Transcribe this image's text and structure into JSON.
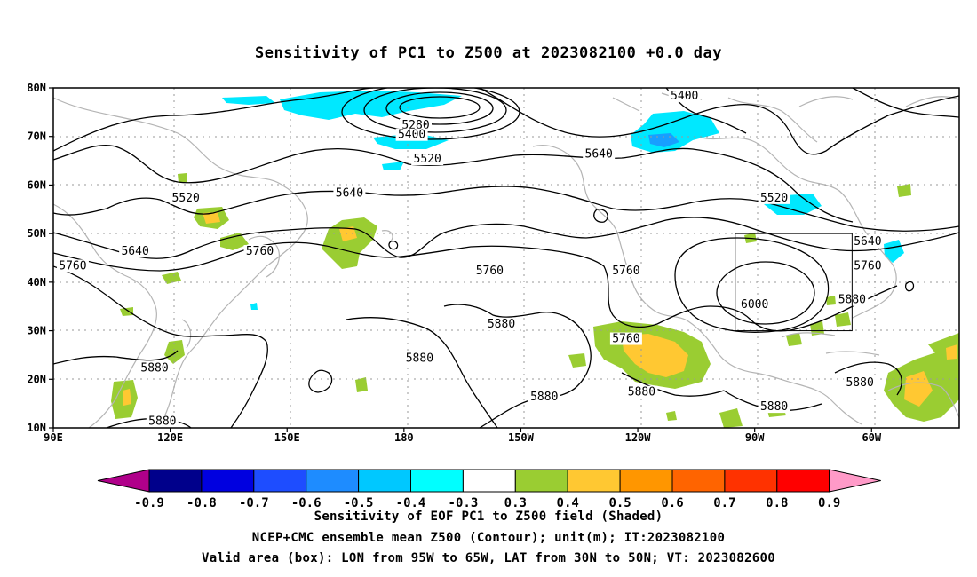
{
  "title": "Sensitivity of PC1 to Z500 at 2023082100 +0.0 day",
  "axes": {
    "lat_labels": [
      "80N",
      "70N",
      "60N",
      "50N",
      "40N",
      "30N",
      "20N",
      "10N"
    ],
    "lon_labels": [
      "90E",
      "120E",
      "150E",
      "180",
      "150W",
      "120W",
      "90W",
      "60W"
    ]
  },
  "contour_labels": [
    {
      "text": "5400",
      "lon": -108,
      "lat": 78
    },
    {
      "text": "5280",
      "lon": -177,
      "lat": 72
    },
    {
      "text": "5400",
      "lon": -178,
      "lat": 70
    },
    {
      "text": "5520",
      "lon": -174,
      "lat": 65
    },
    {
      "text": "5640",
      "lon": -130,
      "lat": 66
    },
    {
      "text": "5520",
      "lon": 124,
      "lat": 57
    },
    {
      "text": "5640",
      "lon": 166,
      "lat": 58
    },
    {
      "text": "5520",
      "lon": -85,
      "lat": 57
    },
    {
      "text": "5640",
      "lon": 111,
      "lat": 46
    },
    {
      "text": "5760",
      "lon": 95,
      "lat": 43
    },
    {
      "text": "5760",
      "lon": 143,
      "lat": 46
    },
    {
      "text": "5760",
      "lon": -158,
      "lat": 42
    },
    {
      "text": "5760",
      "lon": -123,
      "lat": 42
    },
    {
      "text": "5640",
      "lon": -61,
      "lat": 48
    },
    {
      "text": "5760",
      "lon": -61,
      "lat": 43
    },
    {
      "text": "5880",
      "lon": -65,
      "lat": 36
    },
    {
      "text": "6000",
      "lon": -90,
      "lat": 35
    },
    {
      "text": "5880",
      "lon": -155,
      "lat": 31
    },
    {
      "text": "5760",
      "lon": -123,
      "lat": 28
    },
    {
      "text": "5880",
      "lon": -176,
      "lat": 24
    },
    {
      "text": "5880",
      "lon": 116,
      "lat": 22
    },
    {
      "text": "5880",
      "lon": -144,
      "lat": 16
    },
    {
      "text": "5880",
      "lon": -119,
      "lat": 17
    },
    {
      "text": "5880",
      "lon": -85,
      "lat": 14
    },
    {
      "text": "5880",
      "lon": -63,
      "lat": 19
    },
    {
      "text": "5880",
      "lon": 118,
      "lat": 11
    }
  ],
  "valid_box": {
    "lon_from": -95,
    "lon_to": -65,
    "lat_from": 30,
    "lat_to": 50
  },
  "colorbar": {
    "labels": [
      "-0.9",
      "-0.8",
      "-0.7",
      "-0.6",
      "-0.5",
      "-0.4",
      "-0.3",
      "0.3",
      "0.4",
      "0.5",
      "0.6",
      "0.7",
      "0.8",
      "0.9"
    ],
    "colors": [
      "#b0008a",
      "#00008b",
      "#0000e0",
      "#1e4dff",
      "#1e8cff",
      "#00c8ff",
      "#00ffff",
      "#ffffff",
      "#9acd32",
      "#ffc832",
      "#ff9600",
      "#ff6400",
      "#ff3200",
      "#ff0000",
      "#ff9ac8"
    ]
  },
  "shaded_areas": {
    "negative_color": "#00e8ff",
    "positive_outer_color": "#9acd32",
    "positive_inner_color": "#ffc832"
  },
  "captions": [
    "Sensitivity of EOF PC1 to Z500 field (Shaded)",
    "NCEP+CMC ensemble mean Z500 (Contour); unit(m); IT:2023082100",
    "Valid area (box): LON from 95W to 65W, LAT from 30N to 50N; VT: 2023082600"
  ]
}
